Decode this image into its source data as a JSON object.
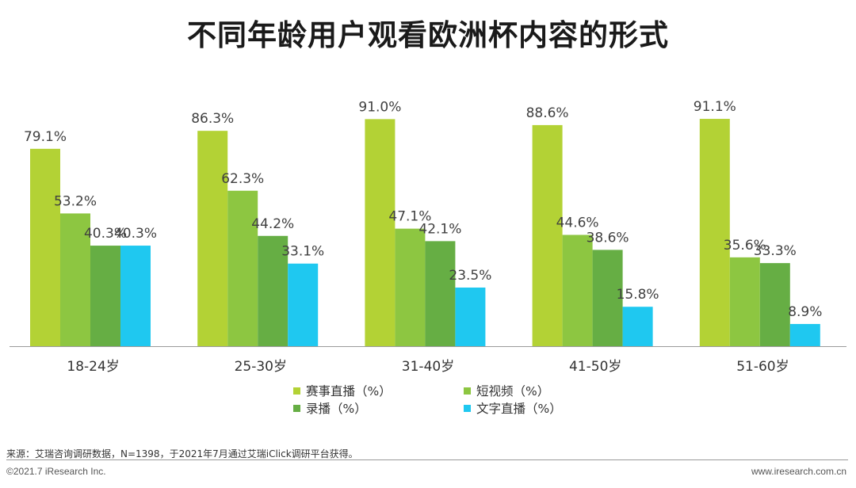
{
  "title": "不同年龄用户观看欧洲杯内容的形式",
  "chart_data": {
    "type": "bar",
    "categories": [
      "18-24岁",
      "25-30岁",
      "31-40岁",
      "41-50岁",
      "51-60岁"
    ],
    "series": [
      {
        "name": "赛事直播（%）",
        "color": "#b3d235",
        "values": [
          79.1,
          86.3,
          91.0,
          88.6,
          91.1
        ],
        "labels": [
          "79.1%",
          "86.3%",
          "91.0%",
          "88.6%",
          "91.1%"
        ]
      },
      {
        "name": "短视频（%）",
        "color": "#8dc641",
        "values": [
          53.2,
          62.3,
          47.1,
          44.6,
          35.6
        ],
        "labels": [
          "53.2%",
          "62.3%",
          "47.1%",
          "44.6%",
          "35.6%"
        ]
      },
      {
        "name": "录播（%）",
        "color": "#66ae44",
        "values": [
          40.3,
          44.2,
          42.1,
          38.6,
          33.3
        ],
        "labels": [
          "40.3%",
          "44.2%",
          "42.1%",
          "38.6%",
          "33.3%"
        ]
      },
      {
        "name": "文字直播（%）",
        "color": "#1fc8f0",
        "values": [
          40.3,
          33.1,
          23.5,
          15.8,
          8.9
        ],
        "labels": [
          "40.3%",
          "33.1%",
          "23.5%",
          "15.8%",
          "8.9%"
        ]
      }
    ],
    "ylim": [
      0,
      100
    ],
    "grid": false,
    "legend_position": "bottom"
  },
  "footer": {
    "source": "来源：艾瑞咨询调研数据，N=1398，于2021年7月通过艾瑞iClick调研平台获得。",
    "copyright": "©2021.7 iResearch Inc.",
    "website": "www.iresearch.com.cn"
  }
}
